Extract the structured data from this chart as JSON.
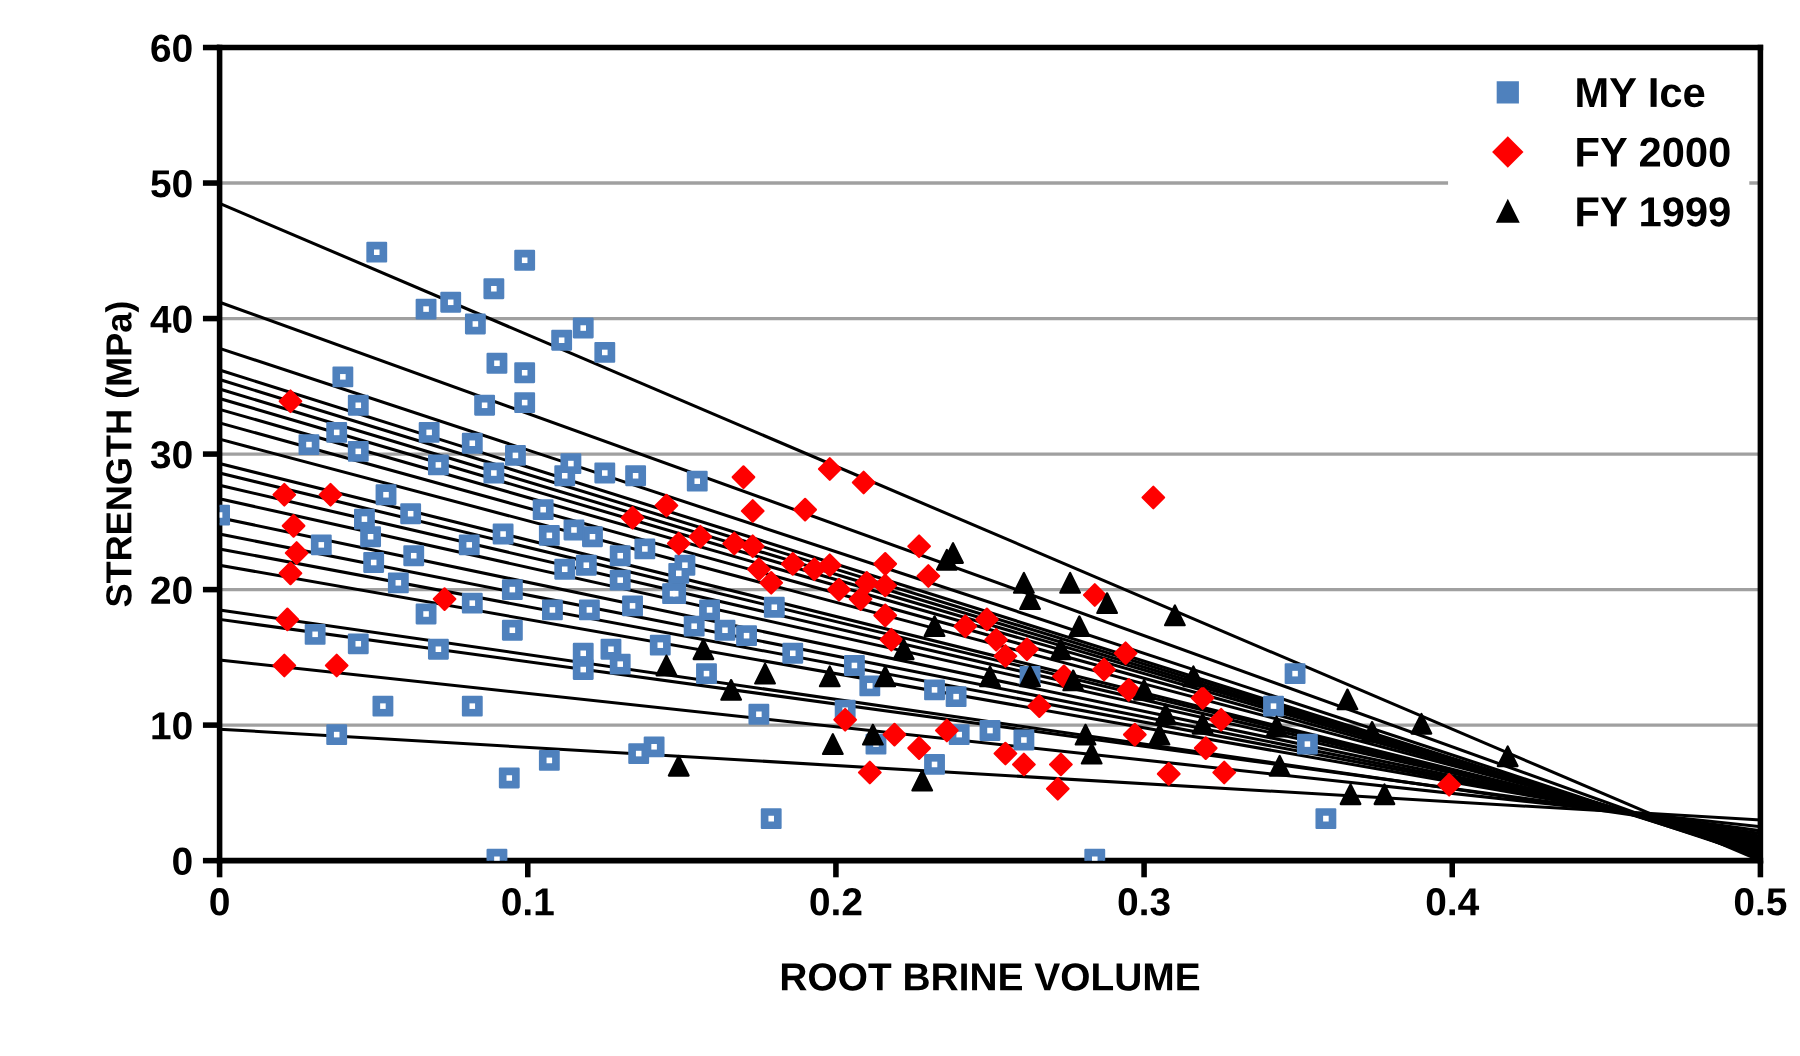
{
  "chart_data": {
    "type": "scatter",
    "xlabel": "ROOT BRINE VOLUME",
    "ylabel": "STRENGTH (MPa)",
    "xlim": [
      0,
      0.5
    ],
    "ylim": [
      0,
      60
    ],
    "xticks": [
      0,
      0.1,
      0.2,
      0.3,
      0.4,
      0.5
    ],
    "yticks": [
      0,
      10,
      20,
      30,
      40,
      50,
      60
    ],
    "grid": "y",
    "legend": "top right",
    "series": [
      {
        "name": "MY Ice",
        "color": "#4f81bd",
        "marker": "square",
        "x": [
          0,
          0.051,
          0.099,
          0.067,
          0.075,
          0.083,
          0.089,
          0.111,
          0.118,
          0.125,
          0.09,
          0.099,
          0.099,
          0.086,
          0.04,
          0.045,
          0.029,
          0.038,
          0.045,
          0.068,
          0.071,
          0.082,
          0.089,
          0.096,
          0.114,
          0.112,
          0.125,
          0.135,
          0.155,
          0.054,
          0.062,
          0.047,
          0.049,
          0.05,
          0.033,
          0.063,
          0.058,
          0.081,
          0.092,
          0.105,
          0.107,
          0.115,
          0.121,
          0.112,
          0.119,
          0.13,
          0.13,
          0.138,
          0.095,
          0.082,
          0.067,
          0.108,
          0.12,
          0.134,
          0.148,
          0.149,
          0.154,
          0.159,
          0.164,
          0.171,
          0.18,
          0.186,
          0.031,
          0.045,
          0.071,
          0.095,
          0.118,
          0.118,
          0.127,
          0.13,
          0.143,
          0.158,
          0.175,
          0.053,
          0.082,
          0.038,
          0.107,
          0.094,
          0.136,
          0.141,
          0.179,
          0.09,
          0.151,
          0.147,
          0.206,
          0.211,
          0.203,
          0.213,
          0.232,
          0.239,
          0.232,
          0.25,
          0.261,
          0.24,
          0.284,
          0.263,
          0.349,
          0.342,
          0.353,
          0.359
        ],
        "values": [
          25.5,
          44.9,
          44.3,
          40.7,
          41.2,
          39.6,
          42.2,
          38.4,
          39.3,
          37.5,
          36.7,
          36.0,
          33.8,
          33.6,
          35.7,
          33.6,
          30.7,
          31.6,
          30.2,
          31.6,
          29.2,
          30.8,
          28.6,
          29.9,
          29.3,
          28.4,
          28.6,
          28.4,
          28.0,
          27.0,
          25.6,
          25.2,
          23.9,
          22.0,
          23.3,
          22.5,
          20.5,
          23.3,
          24.1,
          25.9,
          24.0,
          24.4,
          23.9,
          21.5,
          21.8,
          22.5,
          20.7,
          23.0,
          20.0,
          19.0,
          18.2,
          18.5,
          18.5,
          18.8,
          19.7,
          21.2,
          17.3,
          18.5,
          17.0,
          16.6,
          18.7,
          15.3,
          16.7,
          16.0,
          15.6,
          17.0,
          15.3,
          14.1,
          15.6,
          14.5,
          15.9,
          13.8,
          10.8,
          11.4,
          11.4,
          9.3,
          7.4,
          6.1,
          7.9,
          8.4,
          3.1,
          0.1,
          21.8,
          19.7,
          14.4,
          12.9,
          11.1,
          8.6,
          12.6,
          12.1,
          7.1,
          9.6,
          8.9,
          9.3,
          0.1,
          13.6,
          13.8,
          11.4,
          8.6,
          3.1
        ]
      },
      {
        "name": "FY 2000",
        "color": "#ff0000",
        "marker": "diamond",
        "x": [
          0.023,
          0.021,
          0.036,
          0.024,
          0.025,
          0.023,
          0.022,
          0.021,
          0.038,
          0.073,
          0.17,
          0.173,
          0.134,
          0.145,
          0.149,
          0.156,
          0.167,
          0.173,
          0.175,
          0.179,
          0.186,
          0.198,
          0.209,
          0.19,
          0.193,
          0.198,
          0.201,
          0.208,
          0.21,
          0.216,
          0.216,
          0.227,
          0.23,
          0.216,
          0.218,
          0.242,
          0.249,
          0.252,
          0.255,
          0.262,
          0.284,
          0.294,
          0.287,
          0.274,
          0.295,
          0.266,
          0.203,
          0.219,
          0.236,
          0.227,
          0.211,
          0.255,
          0.261,
          0.273,
          0.272,
          0.303,
          0.297,
          0.308,
          0.319,
          0.325,
          0.32,
          0.326,
          0.399
        ],
        "values": [
          33.9,
          27.0,
          27.0,
          24.7,
          22.7,
          21.2,
          17.8,
          14.4,
          14.4,
          19.3,
          28.3,
          25.8,
          25.3,
          26.2,
          23.4,
          23.9,
          23.4,
          23.2,
          21.5,
          20.5,
          21.9,
          28.9,
          27.9,
          25.9,
          21.5,
          21.8,
          20.0,
          19.3,
          20.5,
          20.3,
          21.9,
          23.2,
          21.0,
          18.1,
          16.3,
          17.3,
          17.8,
          16.3,
          15.1,
          15.6,
          19.6,
          15.3,
          14.1,
          13.6,
          12.6,
          11.4,
          10.4,
          9.3,
          9.6,
          8.3,
          6.5,
          7.9,
          7.1,
          7.1,
          5.3,
          26.8,
          9.3,
          6.4,
          12.0,
          10.4,
          8.3,
          6.5,
          5.6
        ]
      },
      {
        "name": "FY 1999",
        "color": "#000000",
        "marker": "triangle",
        "x": [
          0.145,
          0.157,
          0.166,
          0.177,
          0.149,
          0.198,
          0.216,
          0.222,
          0.199,
          0.212,
          0.228,
          0.232,
          0.236,
          0.238,
          0.25,
          0.261,
          0.263,
          0.263,
          0.273,
          0.276,
          0.279,
          0.277,
          0.281,
          0.283,
          0.288,
          0.3,
          0.307,
          0.305,
          0.31,
          0.316,
          0.319,
          0.343,
          0.344,
          0.366,
          0.374,
          0.367,
          0.378,
          0.39,
          0.418
        ],
        "values": [
          14.4,
          15.6,
          12.6,
          13.8,
          7.0,
          13.6,
          13.6,
          15.6,
          8.6,
          9.3,
          5.9,
          17.3,
          22.2,
          22.7,
          13.6,
          20.5,
          19.3,
          13.6,
          15.6,
          20.5,
          17.3,
          13.3,
          9.3,
          7.9,
          19.0,
          12.6,
          10.8,
          9.3,
          18.1,
          13.6,
          10.1,
          9.9,
          7.0,
          11.9,
          9.5,
          4.9,
          4.9,
          10.1,
          7.7
        ]
      },
      {
        "type": "line",
        "color": "#000000",
        "x": [
          0,
          0.5
        ],
        "values": [
          48.5,
          0.0
        ]
      },
      {
        "type": "line",
        "color": "#000000",
        "x": [
          0,
          0.5
        ],
        "values": [
          41.2,
          0.2
        ]
      },
      {
        "type": "line",
        "color": "#000000",
        "x": [
          0,
          0.5
        ],
        "values": [
          37.8,
          0.3
        ]
      },
      {
        "type": "line",
        "color": "#000000",
        "x": [
          0,
          0.5
        ],
        "values": [
          36.2,
          0.4
        ]
      },
      {
        "type": "line",
        "color": "#000000",
        "x": [
          0,
          0.5
        ],
        "values": [
          35.5,
          0.5
        ]
      },
      {
        "type": "line",
        "color": "#000000",
        "x": [
          0,
          0.5
        ],
        "values": [
          34.8,
          0.6
        ]
      },
      {
        "type": "line",
        "color": "#000000",
        "x": [
          0,
          0.5
        ],
        "values": [
          34.1,
          0.7
        ]
      },
      {
        "type": "line",
        "color": "#000000",
        "x": [
          0,
          0.5
        ],
        "values": [
          33.3,
          0.8
        ]
      },
      {
        "type": "line",
        "color": "#000000",
        "x": [
          0,
          0.5
        ],
        "values": [
          32.3,
          0.9
        ]
      },
      {
        "type": "line",
        "color": "#000000",
        "x": [
          0,
          0.5
        ],
        "values": [
          31.1,
          1.0
        ]
      },
      {
        "type": "line",
        "color": "#000000",
        "x": [
          0,
          0.5
        ],
        "values": [
          29.3,
          1.1
        ]
      },
      {
        "type": "line",
        "color": "#000000",
        "x": [
          0,
          0.5
        ],
        "values": [
          28.6,
          1.2
        ]
      },
      {
        "type": "line",
        "color": "#000000",
        "x": [
          0,
          0.5
        ],
        "values": [
          27.7,
          1.3
        ]
      },
      {
        "type": "line",
        "color": "#000000",
        "x": [
          0,
          0.5
        ],
        "values": [
          26.7,
          1.4
        ]
      },
      {
        "type": "line",
        "color": "#000000",
        "x": [
          0,
          0.5
        ],
        "values": [
          25.3,
          1.5
        ]
      },
      {
        "type": "line",
        "color": "#000000",
        "x": [
          0,
          0.5
        ],
        "values": [
          24.1,
          1.6
        ]
      },
      {
        "type": "line",
        "color": "#000000",
        "x": [
          0,
          0.5
        ],
        "values": [
          23.0,
          1.7
        ]
      },
      {
        "type": "line",
        "color": "#000000",
        "x": [
          0,
          0.5
        ],
        "values": [
          21.8,
          1.8
        ]
      },
      {
        "type": "line",
        "color": "#000000",
        "x": [
          0,
          0.5
        ],
        "values": [
          18.5,
          2.0
        ]
      },
      {
        "type": "line",
        "color": "#000000",
        "x": [
          0,
          0.5
        ],
        "values": [
          17.8,
          2.2
        ]
      },
      {
        "type": "line",
        "color": "#000000",
        "x": [
          0,
          0.5
        ],
        "values": [
          14.8,
          2.5
        ]
      },
      {
        "type": "line",
        "color": "#000000",
        "x": [
          0,
          0.5
        ],
        "values": [
          9.7,
          3.0
        ]
      }
    ]
  }
}
